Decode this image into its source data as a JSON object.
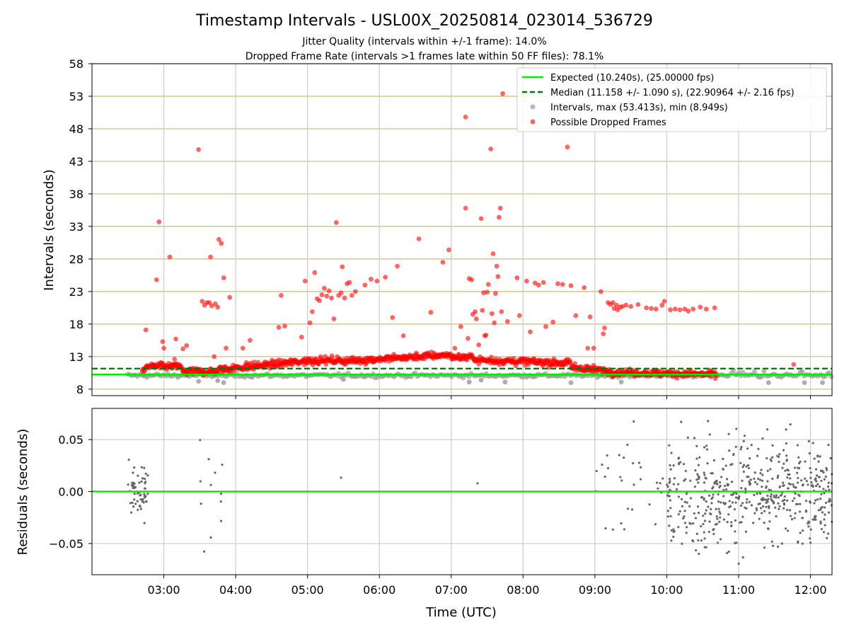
{
  "title": "Timestamp Intervals - USL00X_20250814_023014_536729",
  "subtitle_1": "Jitter Quality (intervals within +/-1 frame): 14.0%",
  "subtitle_2": "Dropped Frame Rate (intervals >1 frames late within 50 FF files): 78.1%",
  "colors": {
    "expected": "#00ee00",
    "median": "#007700",
    "intervals": "#999999",
    "dropped": "#ff0000",
    "residuals": "#666666",
    "hgrid_top": "#d4b96a",
    "grid": "#cccccc"
  },
  "chart_data": [
    {
      "type": "scatter",
      "xlabel": "",
      "ylabel": "Intervals (seconds)",
      "xlim": [
        "02:00",
        "12:18"
      ],
      "ylim": [
        7,
        58
      ],
      "yticks": [
        "8",
        "13",
        "18",
        "23",
        "28",
        "33",
        "38",
        "43",
        "48",
        "53",
        "58"
      ],
      "grid": "on (vertical grey, horizontal gold)",
      "legend_position": "top-right",
      "legend": [
        "Expected (10.240s), (25.00000 fps)",
        "Median (11.158 +/- 1.090 s), (22.90964 +/- 2.16 fps)",
        "Intervals, max (53.413s), min (8.949s)",
        "Possible Dropped Frames"
      ],
      "expected_line": 10.24,
      "median_line": 11.158,
      "outliers": [
        {
          "t": "02:45",
          "y": 17.1
        },
        {
          "t": "02:54",
          "y": 24.8
        },
        {
          "t": "02:56",
          "y": 33.7
        },
        {
          "t": "02:59",
          "y": 15.3
        },
        {
          "t": "03:00",
          "y": 14.3
        },
        {
          "t": "03:05",
          "y": 28.3
        },
        {
          "t": "03:09",
          "y": 12.6
        },
        {
          "t": "03:10",
          "y": 15.7
        },
        {
          "t": "03:16",
          "y": 14.2
        },
        {
          "t": "03:19",
          "y": 14.7
        },
        {
          "t": "03:29",
          "y": 44.8
        },
        {
          "t": "03:32",
          "y": 21.5
        },
        {
          "t": "03:34",
          "y": 20.9
        },
        {
          "t": "03:36",
          "y": 21.3
        },
        {
          "t": "03:38",
          "y": 21.3
        },
        {
          "t": "03:39",
          "y": 28.3
        },
        {
          "t": "03:40",
          "y": 20.8
        },
        {
          "t": "03:42",
          "y": 13.0
        },
        {
          "t": "03:43",
          "y": 21.1
        },
        {
          "t": "03:45",
          "y": 20.6
        },
        {
          "t": "03:46",
          "y": 31.0
        },
        {
          "t": "03:48",
          "y": 30.4
        },
        {
          "t": "03:50",
          "y": 25.1
        },
        {
          "t": "03:52",
          "y": 14.3
        },
        {
          "t": "03:55",
          "y": 22.1
        },
        {
          "t": "04:06",
          "y": 14.3
        },
        {
          "t": "04:12",
          "y": 15.5
        },
        {
          "t": "04:36",
          "y": 17.5
        },
        {
          "t": "04:38",
          "y": 22.4
        },
        {
          "t": "04:41",
          "y": 17.7
        },
        {
          "t": "04:55",
          "y": 16.0
        },
        {
          "t": "04:58",
          "y": 24.6
        },
        {
          "t": "05:02",
          "y": 18.2
        },
        {
          "t": "05:04",
          "y": 19.9
        },
        {
          "t": "05:06",
          "y": 25.9
        },
        {
          "t": "05:08",
          "y": 21.9
        },
        {
          "t": "05:10",
          "y": 21.6
        },
        {
          "t": "05:12",
          "y": 22.5
        },
        {
          "t": "05:14",
          "y": 23.5
        },
        {
          "t": "05:16",
          "y": 22.3
        },
        {
          "t": "05:18",
          "y": 23.1
        },
        {
          "t": "05:20",
          "y": 22.0
        },
        {
          "t": "05:22",
          "y": 18.8
        },
        {
          "t": "05:24",
          "y": 33.6
        },
        {
          "t": "05:26",
          "y": 22.4
        },
        {
          "t": "05:28",
          "y": 22.8
        },
        {
          "t": "05:29",
          "y": 26.8
        },
        {
          "t": "05:31",
          "y": 22.0
        },
        {
          "t": "05:33",
          "y": 24.2
        },
        {
          "t": "05:35",
          "y": 24.4
        },
        {
          "t": "05:37",
          "y": 22.4
        },
        {
          "t": "05:40",
          "y": 23.0
        },
        {
          "t": "05:48",
          "y": 24.0
        },
        {
          "t": "05:53",
          "y": 24.9
        },
        {
          "t": "05:58",
          "y": 24.6
        },
        {
          "t": "06:05",
          "y": 25.2
        },
        {
          "t": "06:11",
          "y": 19.0
        },
        {
          "t": "06:15",
          "y": 26.9
        },
        {
          "t": "06:20",
          "y": 16.2
        },
        {
          "t": "06:33",
          "y": 31.1
        },
        {
          "t": "06:43",
          "y": 19.8
        },
        {
          "t": "06:53",
          "y": 27.5
        },
        {
          "t": "06:58",
          "y": 29.4
        },
        {
          "t": "07:03",
          "y": 14.3
        },
        {
          "t": "07:08",
          "y": 17.6
        },
        {
          "t": "07:12",
          "y": 49.8
        },
        {
          "t": "07:12",
          "y": 35.8
        },
        {
          "t": "07:14",
          "y": 15.8
        },
        {
          "t": "07:15",
          "y": 25.0
        },
        {
          "t": "07:17",
          "y": 24.8
        },
        {
          "t": "07:18",
          "y": 19.5
        },
        {
          "t": "07:20",
          "y": 19.9
        },
        {
          "t": "07:21",
          "y": 18.8
        },
        {
          "t": "07:23",
          "y": 14.8
        },
        {
          "t": "07:25",
          "y": 34.2
        },
        {
          "t": "07:26",
          "y": 20.1
        },
        {
          "t": "07:27",
          "y": 22.8
        },
        {
          "t": "07:28",
          "y": 16.2
        },
        {
          "t": "07:29",
          "y": 16.3
        },
        {
          "t": "07:30",
          "y": 22.9
        },
        {
          "t": "07:31",
          "y": 24.1
        },
        {
          "t": "07:33",
          "y": 44.9
        },
        {
          "t": "07:34",
          "y": 19.6
        },
        {
          "t": "07:35",
          "y": 28.8
        },
        {
          "t": "07:36",
          "y": 18.2
        },
        {
          "t": "07:37",
          "y": 22.7
        },
        {
          "t": "07:38",
          "y": 26.9
        },
        {
          "t": "07:39",
          "y": 25.3
        },
        {
          "t": "07:40",
          "y": 34.4
        },
        {
          "t": "07:41",
          "y": 35.8
        },
        {
          "t": "07:42",
          "y": 19.9
        },
        {
          "t": "07:43",
          "y": 53.4
        },
        {
          "t": "07:47",
          "y": 18.4
        },
        {
          "t": "07:55",
          "y": 25.1
        },
        {
          "t": "07:57",
          "y": 19.3
        },
        {
          "t": "08:03",
          "y": 24.6
        },
        {
          "t": "08:06",
          "y": 16.8
        },
        {
          "t": "08:10",
          "y": 24.3
        },
        {
          "t": "08:13",
          "y": 24.0
        },
        {
          "t": "08:17",
          "y": 24.4
        },
        {
          "t": "08:19",
          "y": 17.6
        },
        {
          "t": "08:25",
          "y": 18.3
        },
        {
          "t": "08:29",
          "y": 24.2
        },
        {
          "t": "08:33",
          "y": 24.1
        },
        {
          "t": "08:37",
          "y": 45.2
        },
        {
          "t": "08:40",
          "y": 23.9
        },
        {
          "t": "08:44",
          "y": 19.3
        },
        {
          "t": "08:51",
          "y": 23.6
        },
        {
          "t": "08:54",
          "y": 14.3
        },
        {
          "t": "08:56",
          "y": 19.1
        },
        {
          "t": "08:59",
          "y": 14.3
        },
        {
          "t": "09:05",
          "y": 23.0
        },
        {
          "t": "09:07",
          "y": 16.5
        },
        {
          "t": "09:08",
          "y": 17.4
        },
        {
          "t": "09:11",
          "y": 21.3
        },
        {
          "t": "09:13",
          "y": 21.0
        },
        {
          "t": "09:15",
          "y": 21.3
        },
        {
          "t": "09:16",
          "y": 20.4
        },
        {
          "t": "09:18",
          "y": 20.9
        },
        {
          "t": "09:19",
          "y": 20.2
        },
        {
          "t": "09:21",
          "y": 20.6
        },
        {
          "t": "09:23",
          "y": 20.7
        },
        {
          "t": "09:26",
          "y": 20.9
        },
        {
          "t": "09:30",
          "y": 20.7
        },
        {
          "t": "09:36",
          "y": 21.0
        },
        {
          "t": "09:43",
          "y": 20.5
        },
        {
          "t": "09:47",
          "y": 20.4
        },
        {
          "t": "09:51",
          "y": 20.3
        },
        {
          "t": "09:56",
          "y": 20.9
        },
        {
          "t": "09:58",
          "y": 21.5
        },
        {
          "t": "10:03",
          "y": 20.2
        },
        {
          "t": "10:07",
          "y": 20.3
        },
        {
          "t": "10:11",
          "y": 20.2
        },
        {
          "t": "10:15",
          "y": 20.3
        },
        {
          "t": "10:18",
          "y": 20.0
        },
        {
          "t": "10:22",
          "y": 20.3
        },
        {
          "t": "10:28",
          "y": 20.6
        },
        {
          "t": "10:33",
          "y": 20.3
        },
        {
          "t": "10:40",
          "y": 20.5
        },
        {
          "t": "11:46",
          "y": 11.8
        }
      ],
      "grey_outliers": [
        {
          "t": "03:29",
          "y": 9.2
        },
        {
          "t": "03:50",
          "y": 9.0
        },
        {
          "t": "03:45",
          "y": 9.3
        },
        {
          "t": "05:30",
          "y": 9.5
        },
        {
          "t": "07:15",
          "y": 9.1
        },
        {
          "t": "07:25",
          "y": 9.4
        },
        {
          "t": "07:45",
          "y": 9.1
        },
        {
          "t": "08:40",
          "y": 9.0
        },
        {
          "t": "09:22",
          "y": 9.1
        },
        {
          "t": "11:25",
          "y": 9.0
        },
        {
          "t": "11:55",
          "y": 9.0
        },
        {
          "t": "12:10",
          "y": 9.0
        }
      ]
    },
    {
      "type": "scatter",
      "xlabel": "Time (UTC)",
      "ylabel": "Residuals (seconds)",
      "xlim": [
        "02:00",
        "12:18"
      ],
      "ylim": [
        -0.08,
        0.08
      ],
      "xticks": [
        "03:00",
        "04:00",
        "05:00",
        "06:00",
        "07:00",
        "08:00",
        "09:00",
        "10:00",
        "11:00",
        "12:00"
      ],
      "yticks": [
        "−0.05",
        "0.00",
        "0.05"
      ],
      "grid": "on",
      "zero_line": 0.0
    }
  ]
}
